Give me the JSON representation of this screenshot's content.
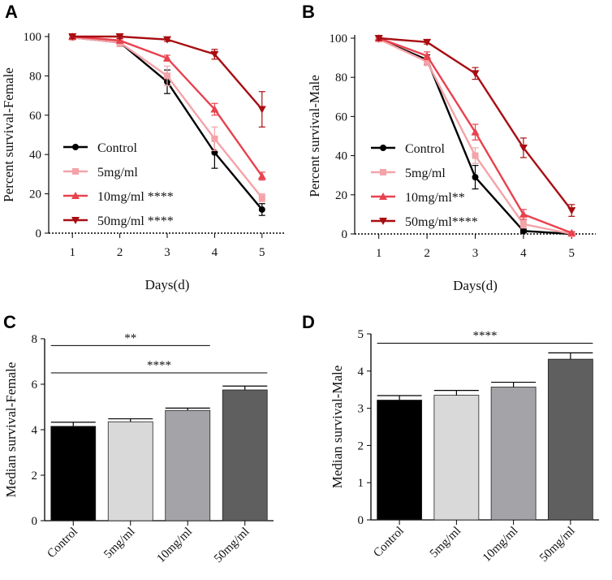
{
  "colors": {
    "control": "#000000",
    "d5": "#f4a3a8",
    "d10": "#e8424e",
    "d50": "#a80d12",
    "bar_control": "#000000",
    "bar_5": "#d9d9d9",
    "bar_10": "#a3a3a8",
    "bar_50": "#5f5f5f"
  },
  "chart_data": [
    {
      "panel": "A",
      "type": "line",
      "ylabel": "Percent survival-Female",
      "xlabel": "Days(d)",
      "x": [
        1,
        2,
        3,
        4,
        5
      ],
      "xlim": [
        0.5,
        5.5
      ],
      "ylim": [
        0,
        100
      ],
      "yticks": [
        0,
        20,
        40,
        60,
        80,
        100
      ],
      "legend_position": "bottom-left",
      "series": [
        {
          "name": "Control",
          "marker": "circle",
          "colorKey": "control",
          "values": [
            99.5,
            97,
            77,
            41,
            12
          ],
          "err": [
            1,
            2,
            6,
            8,
            3
          ],
          "legend_label": "Control"
        },
        {
          "name": "5mg/ml",
          "marker": "square",
          "colorKey": "d5",
          "values": [
            99.5,
            97,
            80,
            48,
            18
          ],
          "err": [
            1,
            2,
            5,
            6,
            2
          ],
          "legend_label": "5mg/ml"
        },
        {
          "name": "10mg/ml",
          "marker": "triangle-up",
          "colorKey": "d10",
          "values": [
            100,
            98,
            89,
            63,
            29
          ],
          "err": [
            1,
            1,
            1.5,
            3,
            2
          ],
          "legend_label": "10mg/ml  ****"
        },
        {
          "name": "50mg/ml",
          "marker": "triangle-down",
          "colorKey": "d50",
          "values": [
            100,
            100,
            98.5,
            91,
            63
          ],
          "err": [
            1,
            1,
            1,
            2.5,
            9
          ],
          "legend_label": "50mg/ml  ****"
        }
      ]
    },
    {
      "panel": "B",
      "type": "line",
      "ylabel": "Percent survival-Male",
      "xlabel": "Days(d)",
      "x": [
        1,
        2,
        3,
        4,
        5
      ],
      "xlim": [
        0.5,
        5.5
      ],
      "ylim": [
        0,
        100
      ],
      "yticks": [
        0,
        20,
        40,
        60,
        80,
        100
      ],
      "legend_position": "bottom-left",
      "series": [
        {
          "name": "Control",
          "marker": "circle",
          "colorKey": "control",
          "values": [
            99.5,
            89,
            29,
            1.5,
            0
          ],
          "err": [
            1,
            2.5,
            6,
            1,
            0.5
          ],
          "legend_label": "Control"
        },
        {
          "name": "5mg/ml",
          "marker": "square",
          "colorKey": "d5",
          "values": [
            99.5,
            88,
            40,
            5,
            0
          ],
          "err": [
            1,
            2,
            4,
            2,
            0.5
          ],
          "legend_label": "5mg/ml"
        },
        {
          "name": "10mg/ml",
          "marker": "triangle-up",
          "colorKey": "d10",
          "values": [
            100,
            91,
            52,
            10,
            0.5
          ],
          "err": [
            1,
            2,
            4,
            2.5,
            0.5
          ],
          "legend_label": "10mg/ml**"
        },
        {
          "name": "50mg/ml",
          "marker": "triangle-down",
          "colorKey": "d50",
          "values": [
            100,
            98,
            82,
            44,
            12
          ],
          "err": [
            1,
            1,
            3,
            5,
            3
          ],
          "legend_label": "50mg/ml****"
        }
      ]
    },
    {
      "panel": "C",
      "type": "bar",
      "ylabel": "Median survival-Female",
      "categories": [
        "Control",
        "5mg/ml",
        "10mg/ml",
        "50mg/ml"
      ],
      "values": [
        4.15,
        4.35,
        4.85,
        5.75
      ],
      "err": [
        0.18,
        0.13,
        0.1,
        0.17
      ],
      "colorKeys": [
        "bar_control",
        "bar_5",
        "bar_10",
        "bar_50"
      ],
      "ylim": [
        0,
        8
      ],
      "yticks": [
        0,
        2,
        4,
        6,
        8
      ],
      "significance": [
        {
          "from": 0,
          "to": 2,
          "label": "**",
          "y": 7.7
        },
        {
          "from": 0,
          "to": 3,
          "label": "****",
          "y": 6.5
        }
      ]
    },
    {
      "panel": "D",
      "type": "bar",
      "ylabel": "Median survival-Male",
      "categories": [
        "Control",
        "5mg/ml",
        "10mg/ml",
        "50mg/ml"
      ],
      "values": [
        3.22,
        3.35,
        3.57,
        4.32
      ],
      "err": [
        0.12,
        0.13,
        0.13,
        0.17
      ],
      "colorKeys": [
        "bar_control",
        "bar_5",
        "bar_10",
        "bar_50"
      ],
      "ylim": [
        0,
        5
      ],
      "yticks": [
        0,
        1,
        2,
        3,
        4,
        5
      ],
      "significance": [
        {
          "from": 0,
          "to": 3,
          "label": "****",
          "y": 4.75
        }
      ]
    }
  ]
}
